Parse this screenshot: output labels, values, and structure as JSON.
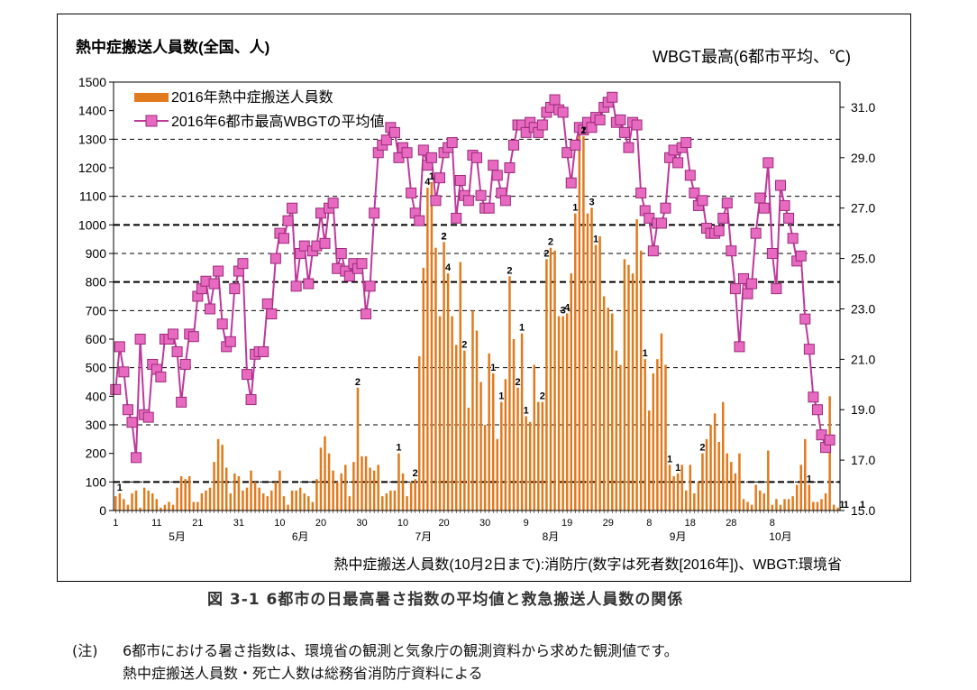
{
  "chart_data": {
    "type": "bar+line",
    "title_left": "熱中症搬送人員数(全国、人)",
    "title_right": "WBGT最高(6都市平均、℃)",
    "source_note": "熱中症搬送人員数(10月2日まで):消防庁(数字は死者数[2016年])、WBGT:環境省",
    "y_left": {
      "min": 0,
      "max": 1500,
      "ticks": [
        0,
        100,
        200,
        300,
        400,
        500,
        600,
        700,
        800,
        900,
        1000,
        1100,
        1200,
        1300,
        1400,
        1500
      ]
    },
    "y_right": {
      "min": 15.0,
      "max": 32.0,
      "ticks": [
        "15.0",
        "17.0",
        "19.0",
        "21.0",
        "23.0",
        "25.0",
        "27.0",
        "29.0",
        "31.0"
      ]
    },
    "x_tick_labels": [
      "1",
      "11",
      "21",
      "31",
      "10",
      "20",
      "30",
      "10",
      "20",
      "30",
      "9",
      "19",
      "29",
      "8",
      "18",
      "28",
      "8"
    ],
    "x_tick_days": [
      0,
      10,
      20,
      30,
      40,
      50,
      60,
      70,
      80,
      90,
      100,
      110,
      120,
      130,
      140,
      150,
      160
    ],
    "month_labels": [
      {
        "label": "5月",
        "day": 15
      },
      {
        "label": "6月",
        "day": 45
      },
      {
        "label": "7月",
        "day": 75
      },
      {
        "label": "8月",
        "day": 106
      },
      {
        "label": "9月",
        "day": 137
      },
      {
        "label": "10月",
        "day": 162
      }
    ],
    "series": [
      {
        "name": "2016年熱中症搬送人員数",
        "kind": "bar",
        "color": "#e07a1c",
        "values": [
          50,
          60,
          40,
          20,
          60,
          70,
          10,
          80,
          70,
          60,
          40,
          10,
          20,
          30,
          20,
          80,
          120,
          110,
          120,
          30,
          30,
          60,
          70,
          80,
          170,
          250,
          230,
          150,
          60,
          130,
          120,
          70,
          80,
          140,
          100,
          80,
          60,
          50,
          70,
          100,
          140,
          50,
          20,
          70,
          70,
          80,
          60,
          50,
          30,
          110,
          220,
          260,
          200,
          140,
          100,
          130,
          160,
          50,
          170,
          430,
          190,
          190,
          150,
          140,
          160,
          50,
          60,
          70,
          70,
          200,
          130,
          50,
          100,
          110,
          540,
          850,
          1130,
          1150,
          920,
          680,
          940,
          830,
          680,
          580,
          870,
          560,
          360,
          700,
          630,
          450,
          300,
          550,
          480,
          250,
          380,
          460,
          820,
          600,
          430,
          620,
          330,
          310,
          510,
          380,
          380,
          880,
          920,
          910,
          680,
          680,
          690,
          830,
          1040,
          1330,
          1310,
          1040,
          1060,
          930,
          960,
          750,
          710,
          690,
          560,
          510,
          880,
          860,
          830,
          1020,
          910,
          530,
          350,
          480,
          530,
          620,
          510,
          160,
          120,
          130,
          160,
          70,
          160,
          60,
          100,
          200,
          250,
          300,
          340,
          240,
          380,
          200,
          170,
          130,
          200,
          40,
          30,
          20,
          90,
          70,
          60,
          210,
          20,
          40,
          20,
          40,
          40,
          50,
          90,
          160,
          250,
          90,
          30,
          30,
          40,
          60,
          400,
          20,
          10
        ]
      },
      {
        "name": "2016年6都市最高WBGTの平均値",
        "kind": "line",
        "color": "#c0389a",
        "values": [
          19.8,
          21.5,
          20.5,
          19.0,
          18.5,
          17.1,
          21.8,
          18.8,
          18.7,
          20.8,
          20.6,
          20.3,
          21.8,
          21.8,
          22.0,
          21.3,
          19.3,
          20.8,
          22.0,
          21.9,
          23.5,
          23.8,
          24.1,
          23.0,
          24.0,
          24.5,
          22.4,
          21.5,
          21.7,
          23.8,
          24.5,
          24.8,
          20.4,
          19.4,
          21.2,
          21.3,
          21.3,
          23.2,
          22.8,
          25.0,
          26.0,
          25.8,
          26.5,
          27.0,
          23.9,
          25.2,
          25.5,
          24.0,
          25.3,
          25.5,
          26.8,
          25.6,
          27.0,
          27.2,
          24.6,
          25.2,
          24.5,
          24.3,
          24.8,
          24.6,
          24.8,
          22.8,
          23.9,
          26.8,
          29.2,
          29.5,
          29.7,
          30.2,
          30.0,
          29.0,
          29.4,
          29.2,
          27.6,
          26.8,
          26.5,
          29.3,
          28.7,
          29.0,
          27.3,
          28.2,
          29.2,
          29.4,
          29.6,
          26.6,
          28.1,
          27.5,
          27.3,
          29.1,
          29.0,
          27.5,
          27.0,
          27.0,
          28.7,
          28.3,
          27.6,
          27.3,
          28.6,
          29.5,
          30.3,
          30.3,
          30.0,
          30.4,
          30.2,
          30.0,
          30.3,
          30.8,
          31.0,
          31.3,
          30.9,
          30.8,
          29.2,
          28.0,
          29.5,
          30.2,
          30.1,
          30.4,
          30.2,
          30.6,
          30.5,
          31.0,
          31.2,
          31.4,
          30.4,
          30.5,
          30.0,
          29.4,
          30.4,
          30.3,
          27.6,
          26.9,
          26.6,
          25.3,
          26.4,
          26.4,
          27.0,
          29.0,
          29.3,
          28.8,
          29.4,
          29.6,
          28.3,
          27.6,
          27.1,
          27.3,
          26.2,
          26.0,
          26.0,
          26.1,
          26.6,
          27.2,
          25.3,
          23.8,
          21.5,
          24.2,
          23.6,
          24.0,
          26.0,
          27.4,
          27.0,
          28.8,
          25.2,
          23.8,
          27.9,
          27.1,
          26.6,
          25.8,
          24.9,
          25.1,
          22.6,
          21.4,
          19.5,
          19.0,
          18.0,
          17.5,
          17.8
        ]
      }
    ],
    "bar_annotations": [
      {
        "day": 1,
        "text": "1"
      },
      {
        "day": 59,
        "text": "2"
      },
      {
        "day": 69,
        "text": "1"
      },
      {
        "day": 73,
        "text": "2"
      },
      {
        "day": 76,
        "text": "4"
      },
      {
        "day": 77,
        "text": "1"
      },
      {
        "day": 80,
        "text": "2"
      },
      {
        "day": 81,
        "text": "4"
      },
      {
        "day": 80,
        "text": "2"
      },
      {
        "day": 85,
        "text": "2"
      },
      {
        "day": 92,
        "text": "1"
      },
      {
        "day": 94,
        "text": "1"
      },
      {
        "day": 96,
        "text": "2"
      },
      {
        "day": 98,
        "text": "2"
      },
      {
        "day": 99,
        "text": "1"
      },
      {
        "day": 100,
        "text": "1"
      },
      {
        "day": 104,
        "text": "2"
      },
      {
        "day": 105,
        "text": "2"
      },
      {
        "day": 106,
        "text": "2"
      },
      {
        "day": 109,
        "text": "3"
      },
      {
        "day": 110,
        "text": "4"
      },
      {
        "day": 112,
        "text": "1"
      },
      {
        "day": 114,
        "text": "1"
      },
      {
        "day": 114,
        "text": "2"
      },
      {
        "day": 116,
        "text": "3"
      },
      {
        "day": 117,
        "text": "1"
      },
      {
        "day": 129,
        "text": "1"
      },
      {
        "day": 135,
        "text": "1"
      },
      {
        "day": 137,
        "text": "1"
      },
      {
        "day": 143,
        "text": "2"
      },
      {
        "day": 169,
        "text": "1"
      },
      {
        "day": 177,
        "text": "1"
      },
      {
        "day": 178,
        "text": "1"
      },
      {
        "day": 182,
        "text": "1"
      }
    ],
    "grid": {
      "dashed_values": [
        100,
        300,
        500,
        700,
        900,
        1100,
        1300
      ],
      "dashed_thick": [
        100,
        800,
        1000
      ]
    },
    "legend_position": "top-left"
  },
  "caption": "図 3-1 6都市の日最高暑さ指数の平均値と救急搬送人員数の関係",
  "notes": {
    "label": "(注)",
    "line1": "6都市における暑さ指数は、環境省の観測と気象庁の観測資料から求めた観測値です。",
    "line2": "熱中症搬送人員数・死亡人数は総務省消防庁資料による"
  }
}
